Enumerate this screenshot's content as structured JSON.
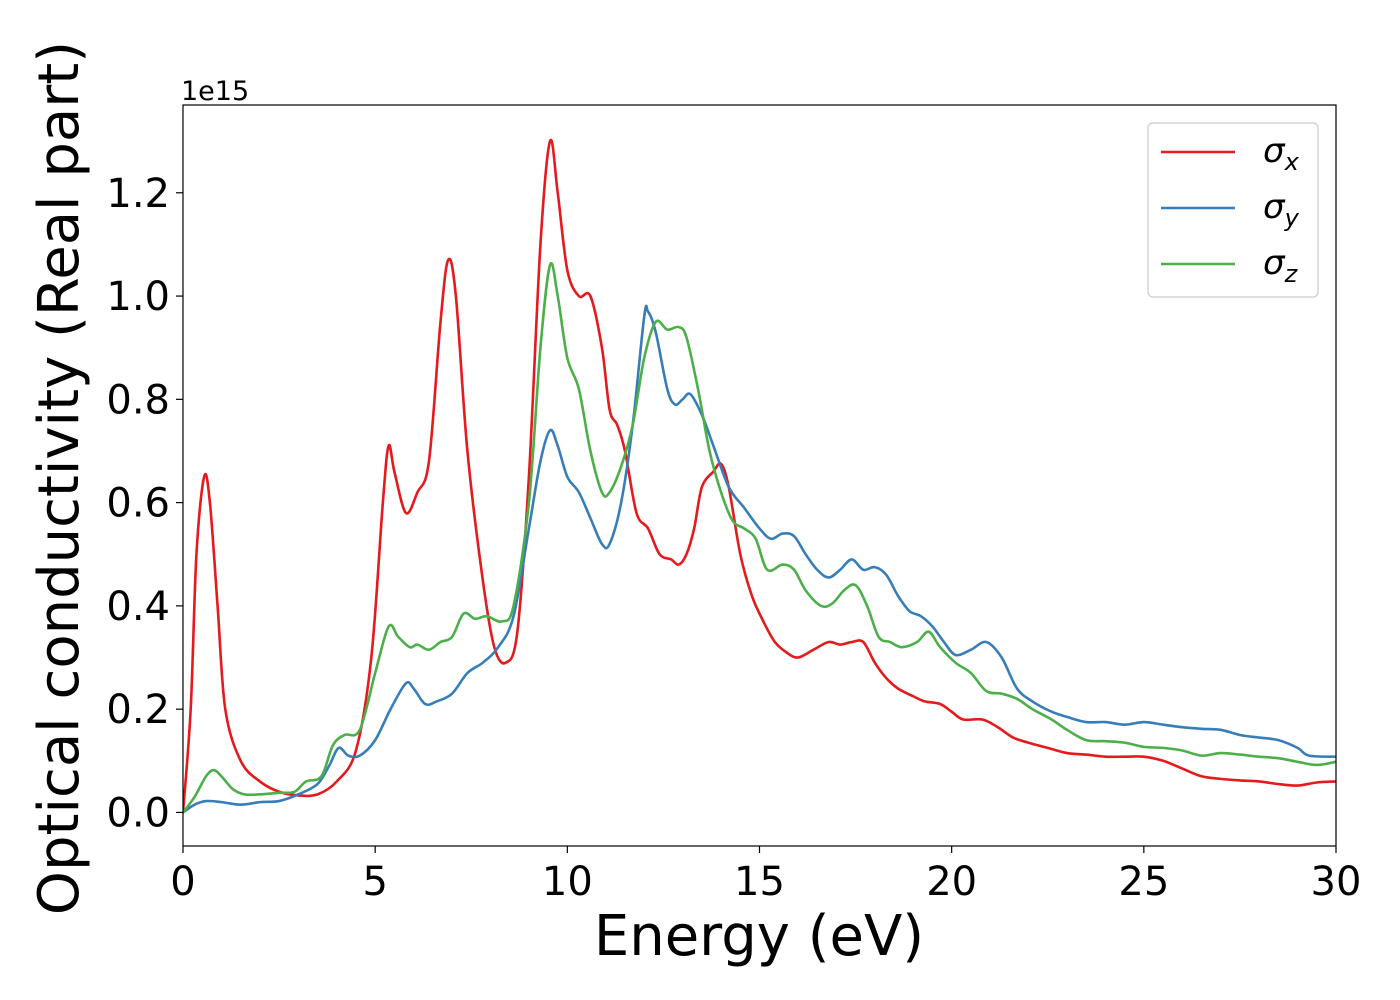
{
  "chart_data": {
    "type": "line",
    "xlabel": "Energy (eV)",
    "ylabel": "Optical conductivity (Real part)",
    "y_offset_label": "1e15",
    "xlim": [
      0,
      30
    ],
    "ylim": [
      -0.065,
      1.37
    ],
    "x_ticks": [
      0,
      5,
      10,
      15,
      20,
      25,
      30
    ],
    "x_tick_labels": [
      "0",
      "5",
      "10",
      "15",
      "20",
      "25",
      "30"
    ],
    "y_ticks": [
      0.0,
      0.2,
      0.4,
      0.6,
      0.8,
      1.0,
      1.2
    ],
    "y_tick_labels": [
      "0.0",
      "0.2",
      "0.4",
      "0.6",
      "0.8",
      "1.0",
      "1.2"
    ],
    "grid": false,
    "legend_position": "top-right",
    "series": [
      {
        "name": "σx",
        "legend_symbol": "σ",
        "legend_subscript": "x",
        "color": "#e41a1c",
        "points": [
          [
            0,
            0
          ],
          [
            0.2,
            0.2
          ],
          [
            0.35,
            0.5
          ],
          [
            0.55,
            0.65
          ],
          [
            0.7,
            0.6
          ],
          [
            0.9,
            0.4
          ],
          [
            1.1,
            0.2
          ],
          [
            1.5,
            0.1
          ],
          [
            2,
            0.06
          ],
          [
            2.5,
            0.04
          ],
          [
            3,
            0.033
          ],
          [
            3.5,
            0.035
          ],
          [
            4,
            0.06
          ],
          [
            4.5,
            0.12
          ],
          [
            4.9,
            0.3
          ],
          [
            5.2,
            0.6
          ],
          [
            5.35,
            0.71
          ],
          [
            5.5,
            0.66
          ],
          [
            5.8,
            0.58
          ],
          [
            6.1,
            0.62
          ],
          [
            6.4,
            0.68
          ],
          [
            6.7,
            0.95
          ],
          [
            6.9,
            1.07
          ],
          [
            7.1,
            1.0
          ],
          [
            7.4,
            0.7
          ],
          [
            7.8,
            0.45
          ],
          [
            8.1,
            0.32
          ],
          [
            8.4,
            0.29
          ],
          [
            8.7,
            0.35
          ],
          [
            9.0,
            0.65
          ],
          [
            9.3,
            1.1
          ],
          [
            9.55,
            1.3
          ],
          [
            9.75,
            1.2
          ],
          [
            10.0,
            1.05
          ],
          [
            10.3,
            1.0
          ],
          [
            10.6,
            1.0
          ],
          [
            10.9,
            0.9
          ],
          [
            11.1,
            0.78
          ],
          [
            11.3,
            0.75
          ],
          [
            11.5,
            0.7
          ],
          [
            11.8,
            0.58
          ],
          [
            12.1,
            0.55
          ],
          [
            12.4,
            0.5
          ],
          [
            12.7,
            0.49
          ],
          [
            12.9,
            0.48
          ],
          [
            13.1,
            0.5
          ],
          [
            13.3,
            0.55
          ],
          [
            13.5,
            0.63
          ],
          [
            13.8,
            0.66
          ],
          [
            14.0,
            0.675
          ],
          [
            14.2,
            0.63
          ],
          [
            14.5,
            0.5
          ],
          [
            14.8,
            0.42
          ],
          [
            15.1,
            0.37
          ],
          [
            15.4,
            0.33
          ],
          [
            15.7,
            0.31
          ],
          [
            16.0,
            0.3
          ],
          [
            16.4,
            0.315
          ],
          [
            16.8,
            0.33
          ],
          [
            17.1,
            0.325
          ],
          [
            17.4,
            0.33
          ],
          [
            17.7,
            0.33
          ],
          [
            18.0,
            0.29
          ],
          [
            18.3,
            0.26
          ],
          [
            18.6,
            0.24
          ],
          [
            19.0,
            0.225
          ],
          [
            19.3,
            0.215
          ],
          [
            19.7,
            0.21
          ],
          [
            20.0,
            0.195
          ],
          [
            20.3,
            0.18
          ],
          [
            20.8,
            0.18
          ],
          [
            21.2,
            0.165
          ],
          [
            21.6,
            0.145
          ],
          [
            22.0,
            0.135
          ],
          [
            22.5,
            0.125
          ],
          [
            23.0,
            0.115
          ],
          [
            23.5,
            0.112
          ],
          [
            24.0,
            0.108
          ],
          [
            24.5,
            0.108
          ],
          [
            25.0,
            0.108
          ],
          [
            25.5,
            0.1
          ],
          [
            26.0,
            0.085
          ],
          [
            26.5,
            0.07
          ],
          [
            27.0,
            0.065
          ],
          [
            27.5,
            0.062
          ],
          [
            28.0,
            0.06
          ],
          [
            28.5,
            0.055
          ],
          [
            29.0,
            0.052
          ],
          [
            29.5,
            0.058
          ],
          [
            30.0,
            0.06
          ]
        ]
      },
      {
        "name": "σy",
        "legend_symbol": "σ",
        "legend_subscript": "y",
        "color": "#377eb8",
        "points": [
          [
            0,
            0
          ],
          [
            0.3,
            0.015
          ],
          [
            0.6,
            0.022
          ],
          [
            1.0,
            0.02
          ],
          [
            1.5,
            0.015
          ],
          [
            2.0,
            0.02
          ],
          [
            2.5,
            0.022
          ],
          [
            3.0,
            0.035
          ],
          [
            3.5,
            0.055
          ],
          [
            3.8,
            0.09
          ],
          [
            4.05,
            0.125
          ],
          [
            4.3,
            0.11
          ],
          [
            4.6,
            0.11
          ],
          [
            5.0,
            0.14
          ],
          [
            5.4,
            0.2
          ],
          [
            5.8,
            0.25
          ],
          [
            6.0,
            0.24
          ],
          [
            6.3,
            0.21
          ],
          [
            6.6,
            0.215
          ],
          [
            7.0,
            0.23
          ],
          [
            7.4,
            0.27
          ],
          [
            7.8,
            0.29
          ],
          [
            8.2,
            0.32
          ],
          [
            8.6,
            0.38
          ],
          [
            9.0,
            0.55
          ],
          [
            9.3,
            0.68
          ],
          [
            9.55,
            0.74
          ],
          [
            9.75,
            0.71
          ],
          [
            10.0,
            0.65
          ],
          [
            10.3,
            0.62
          ],
          [
            10.6,
            0.57
          ],
          [
            10.9,
            0.52
          ],
          [
            11.1,
            0.52
          ],
          [
            11.4,
            0.6
          ],
          [
            11.7,
            0.75
          ],
          [
            12.0,
            0.96
          ],
          [
            12.1,
            0.97
          ],
          [
            12.3,
            0.93
          ],
          [
            12.6,
            0.82
          ],
          [
            12.8,
            0.79
          ],
          [
            13.0,
            0.8
          ],
          [
            13.2,
            0.81
          ],
          [
            13.5,
            0.77
          ],
          [
            13.8,
            0.71
          ],
          [
            14.2,
            0.63
          ],
          [
            14.6,
            0.59
          ],
          [
            15.0,
            0.55
          ],
          [
            15.3,
            0.53
          ],
          [
            15.6,
            0.54
          ],
          [
            15.9,
            0.535
          ],
          [
            16.2,
            0.5
          ],
          [
            16.5,
            0.47
          ],
          [
            16.8,
            0.455
          ],
          [
            17.1,
            0.47
          ],
          [
            17.4,
            0.49
          ],
          [
            17.7,
            0.47
          ],
          [
            18.0,
            0.475
          ],
          [
            18.3,
            0.46
          ],
          [
            18.6,
            0.42
          ],
          [
            18.9,
            0.39
          ],
          [
            19.2,
            0.38
          ],
          [
            19.5,
            0.36
          ],
          [
            19.8,
            0.33
          ],
          [
            20.1,
            0.305
          ],
          [
            20.5,
            0.315
          ],
          [
            20.9,
            0.33
          ],
          [
            21.3,
            0.3
          ],
          [
            21.7,
            0.24
          ],
          [
            22.1,
            0.215
          ],
          [
            22.6,
            0.195
          ],
          [
            23.0,
            0.185
          ],
          [
            23.5,
            0.175
          ],
          [
            24.0,
            0.175
          ],
          [
            24.5,
            0.17
          ],
          [
            25.0,
            0.175
          ],
          [
            25.5,
            0.17
          ],
          [
            26.0,
            0.165
          ],
          [
            26.5,
            0.162
          ],
          [
            27.0,
            0.16
          ],
          [
            27.5,
            0.15
          ],
          [
            28.0,
            0.145
          ],
          [
            28.5,
            0.14
          ],
          [
            29.0,
            0.125
          ],
          [
            29.3,
            0.11
          ],
          [
            30.0,
            0.108
          ]
        ]
      },
      {
        "name": "σz",
        "legend_symbol": "σ",
        "legend_subscript": "z",
        "color": "#4daf4a",
        "points": [
          [
            0,
            0
          ],
          [
            0.3,
            0.03
          ],
          [
            0.6,
            0.07
          ],
          [
            0.8,
            0.082
          ],
          [
            1.0,
            0.07
          ],
          [
            1.3,
            0.045
          ],
          [
            1.6,
            0.035
          ],
          [
            2.0,
            0.035
          ],
          [
            2.5,
            0.038
          ],
          [
            2.9,
            0.04
          ],
          [
            3.2,
            0.06
          ],
          [
            3.6,
            0.07
          ],
          [
            3.9,
            0.13
          ],
          [
            4.2,
            0.15
          ],
          [
            4.6,
            0.16
          ],
          [
            5.0,
            0.27
          ],
          [
            5.35,
            0.36
          ],
          [
            5.6,
            0.34
          ],
          [
            5.9,
            0.32
          ],
          [
            6.1,
            0.325
          ],
          [
            6.4,
            0.315
          ],
          [
            6.7,
            0.33
          ],
          [
            7.0,
            0.34
          ],
          [
            7.3,
            0.385
          ],
          [
            7.6,
            0.375
          ],
          [
            7.9,
            0.38
          ],
          [
            8.3,
            0.37
          ],
          [
            8.6,
            0.4
          ],
          [
            9.0,
            0.6
          ],
          [
            9.3,
            0.9
          ],
          [
            9.55,
            1.06
          ],
          [
            9.75,
            1.0
          ],
          [
            10.0,
            0.88
          ],
          [
            10.3,
            0.82
          ],
          [
            10.6,
            0.7
          ],
          [
            10.9,
            0.62
          ],
          [
            11.1,
            0.62
          ],
          [
            11.4,
            0.67
          ],
          [
            11.7,
            0.75
          ],
          [
            12.0,
            0.88
          ],
          [
            12.3,
            0.95
          ],
          [
            12.6,
            0.935
          ],
          [
            12.9,
            0.94
          ],
          [
            13.1,
            0.92
          ],
          [
            13.4,
            0.82
          ],
          [
            13.7,
            0.7
          ],
          [
            14.0,
            0.62
          ],
          [
            14.3,
            0.565
          ],
          [
            14.6,
            0.55
          ],
          [
            14.9,
            0.53
          ],
          [
            15.2,
            0.47
          ],
          [
            15.6,
            0.48
          ],
          [
            15.9,
            0.47
          ],
          [
            16.2,
            0.43
          ],
          [
            16.6,
            0.4
          ],
          [
            16.9,
            0.405
          ],
          [
            17.2,
            0.43
          ],
          [
            17.5,
            0.44
          ],
          [
            17.8,
            0.4
          ],
          [
            18.1,
            0.34
          ],
          [
            18.4,
            0.33
          ],
          [
            18.7,
            0.32
          ],
          [
            19.1,
            0.33
          ],
          [
            19.4,
            0.35
          ],
          [
            19.7,
            0.32
          ],
          [
            20.1,
            0.29
          ],
          [
            20.5,
            0.27
          ],
          [
            20.9,
            0.235
          ],
          [
            21.3,
            0.23
          ],
          [
            21.7,
            0.22
          ],
          [
            22.1,
            0.2
          ],
          [
            22.6,
            0.18
          ],
          [
            23.0,
            0.16
          ],
          [
            23.5,
            0.14
          ],
          [
            24.0,
            0.138
          ],
          [
            24.5,
            0.135
          ],
          [
            25.0,
            0.127
          ],
          [
            25.5,
            0.125
          ],
          [
            26.0,
            0.12
          ],
          [
            26.5,
            0.11
          ],
          [
            27.0,
            0.115
          ],
          [
            27.5,
            0.112
          ],
          [
            28.0,
            0.108
          ],
          [
            28.5,
            0.105
          ],
          [
            29.0,
            0.098
          ],
          [
            29.5,
            0.092
          ],
          [
            30.0,
            0.098
          ]
        ]
      }
    ]
  }
}
